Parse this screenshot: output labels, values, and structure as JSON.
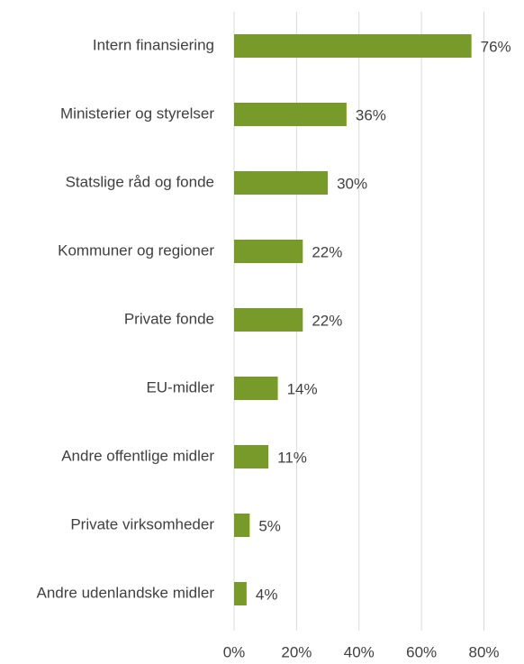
{
  "chart_data": {
    "type": "barh",
    "categories": [
      "Intern finansiering",
      "Ministerier og styrelser",
      "Statslige råd og fonde",
      "Kommuner og regioner",
      "Private fonde",
      "EU-midler",
      "Andre offentlige midler",
      "Private virksomheder",
      "Andre udenlandske midler"
    ],
    "values": [
      76,
      36,
      30,
      22,
      22,
      14,
      11,
      5,
      4
    ],
    "value_labels": [
      "76%",
      "36%",
      "30%",
      "22%",
      "22%",
      "14%",
      "11%",
      "5%",
      "4%"
    ],
    "color": "#789a2a",
    "xlim": [
      0,
      80
    ],
    "xticks": [
      {
        "value": 0,
        "label": "0%"
      },
      {
        "value": 20,
        "label": "20%"
      },
      {
        "value": 40,
        "label": "40%"
      },
      {
        "value": 60,
        "label": "60%"
      },
      {
        "value": 80,
        "label": "80%"
      }
    ],
    "grid": true
  }
}
